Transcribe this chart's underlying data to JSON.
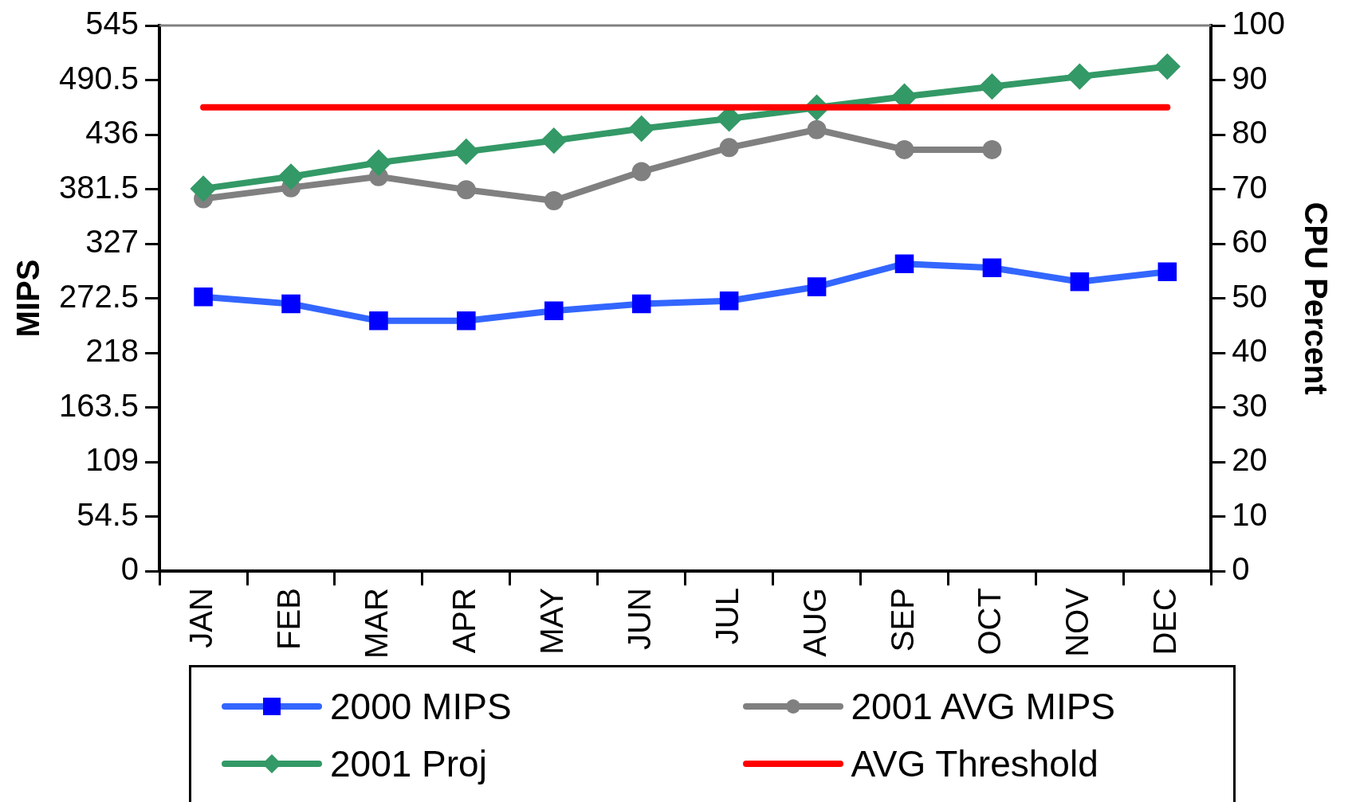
{
  "chart_data": {
    "type": "line",
    "categories": [
      "JAN",
      "FEB",
      "MAR",
      "APR",
      "MAY",
      "JUN",
      "JUL",
      "AUG",
      "SEP",
      "OCT",
      "NOV",
      "DEC"
    ],
    "ylabel": "MIPS",
    "y2label": "CPU Percent",
    "ylim": [
      0,
      545
    ],
    "yticks": [
      0,
      54.5,
      109,
      163.5,
      218,
      272.5,
      327,
      381.5,
      436,
      490.5,
      545
    ],
    "y2lim": [
      0,
      100
    ],
    "y2ticks": [
      0,
      10,
      20,
      30,
      40,
      50,
      60,
      70,
      80,
      90,
      100
    ],
    "grid": false,
    "legend": "bottom",
    "series": [
      {
        "name": "2000 MIPS",
        "color": "#3366ff",
        "marker": "square",
        "values": [
          274,
          267,
          250,
          250,
          260,
          267,
          270,
          284,
          307,
          303,
          289,
          299
        ]
      },
      {
        "name": "2001 AVG MIPS",
        "color": "#808080",
        "marker": "circle",
        "values": [
          372,
          383,
          394,
          381,
          370,
          399,
          423,
          441,
          421,
          421,
          null,
          null
        ]
      },
      {
        "name": "2001 Proj",
        "color": "#339966",
        "marker": "diamond",
        "values": [
          382,
          394,
          408,
          419,
          430,
          442,
          452,
          463,
          474,
          484,
          494,
          504
        ]
      },
      {
        "name": "AVG Threshold",
        "color": "#ff0000",
        "marker": "none",
        "axis": "y2",
        "values": [
          85,
          85,
          85,
          85,
          85,
          85,
          85,
          85,
          85,
          85,
          85,
          85
        ]
      }
    ]
  }
}
